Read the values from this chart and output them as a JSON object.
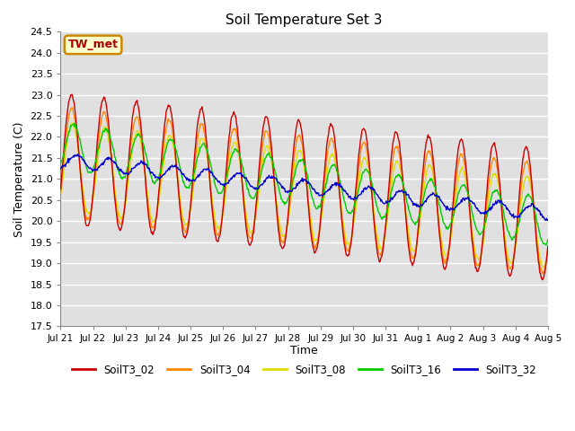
{
  "title": "Soil Temperature Set 3",
  "ylabel": "Soil Temperature (C)",
  "xlabel": "Time",
  "ylim": [
    17.5,
    24.5
  ],
  "yticks": [
    17.5,
    18.0,
    18.5,
    19.0,
    19.5,
    20.0,
    20.5,
    21.0,
    21.5,
    22.0,
    22.5,
    23.0,
    23.5,
    24.0,
    24.5
  ],
  "line_colors": {
    "SoilT3_02": "#cc0000",
    "SoilT3_04": "#ff8800",
    "SoilT3_08": "#dddd00",
    "SoilT3_16": "#00cc00",
    "SoilT3_32": "#0000cc"
  },
  "annotation_text": "TW_met",
  "annotation_bg": "#ffffcc",
  "annotation_border": "#cc8800",
  "background_color": "#e0e0e0",
  "xtick_labels": [
    "Jul 21",
    "Jul 22",
    "Jul 23",
    "Jul 24",
    "Jul 25",
    "Jul 26",
    "Jul 27",
    "Jul 28",
    "Jul 29",
    "Jul 30",
    "Jul 31",
    "Aug 1",
    "Aug 2",
    "Aug 3",
    "Aug 4",
    "Aug 5"
  ],
  "legend_entries": [
    "SoilT3_02",
    "SoilT3_04",
    "SoilT3_08",
    "SoilT3_16",
    "SoilT3_32"
  ]
}
